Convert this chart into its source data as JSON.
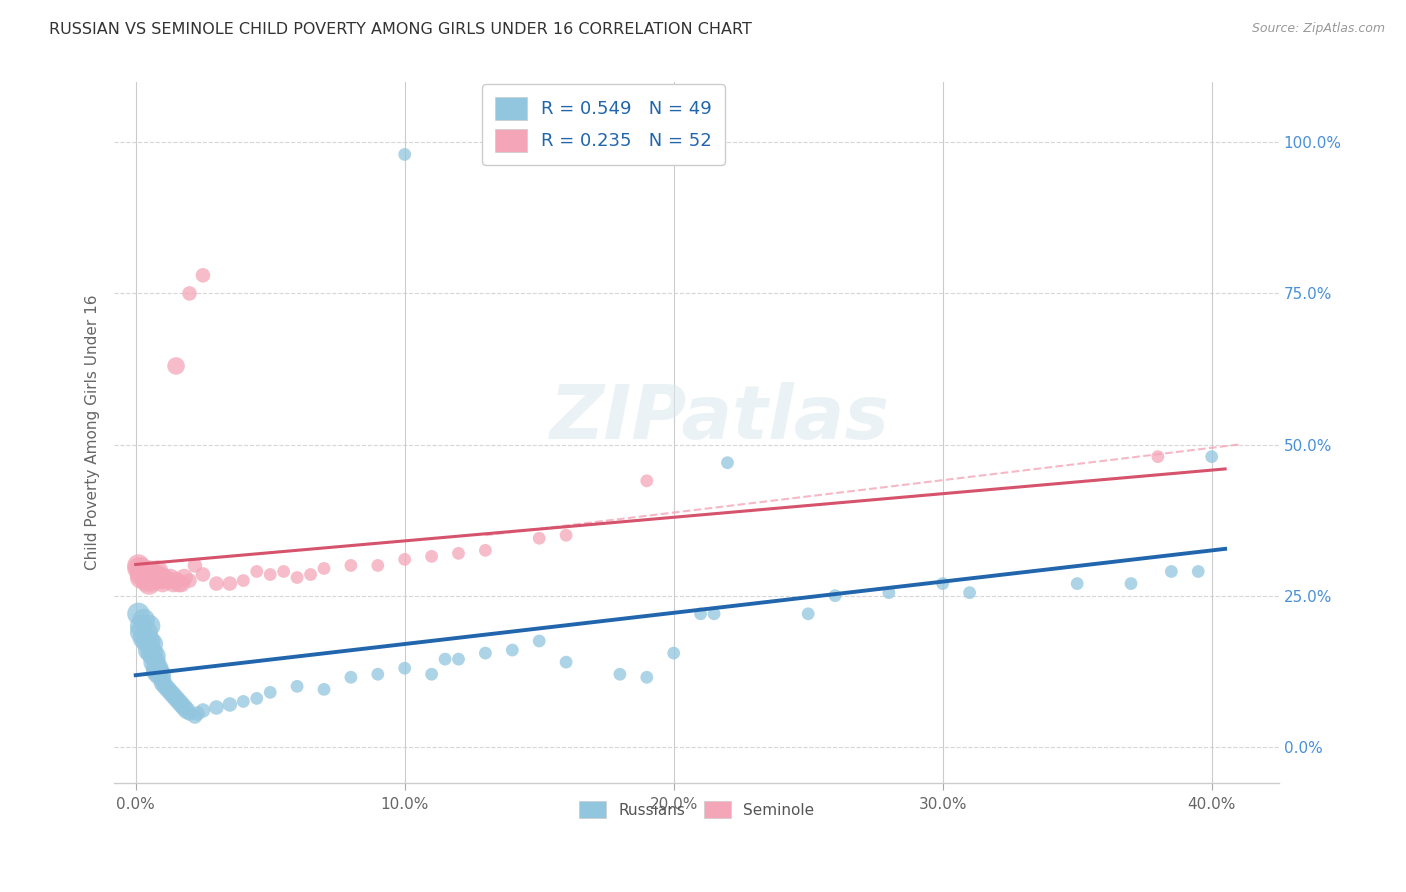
{
  "title": "RUSSIAN VS SEMINOLE CHILD POVERTY AMONG GIRLS UNDER 16 CORRELATION CHART",
  "source": "Source: ZipAtlas.com",
  "ylabel": "Child Poverty Among Girls Under 16",
  "xlabel_ticks": [
    "0.0%",
    "",
    "10.0%",
    "",
    "20.0%",
    "",
    "30.0%",
    "",
    "40.0%"
  ],
  "xlabel_vals": [
    0.0,
    0.05,
    0.1,
    0.15,
    0.2,
    0.25,
    0.3,
    0.35,
    0.4
  ],
  "xlabel_show": [
    "0.0%",
    "10.0%",
    "20.0%",
    "30.0%",
    "40.0%"
  ],
  "xlabel_show_vals": [
    0.0,
    0.1,
    0.2,
    0.3,
    0.4
  ],
  "ylabel_ticks": [
    "100.0%",
    "75.0%",
    "50.0%",
    "25.0%",
    "0.0%"
  ],
  "ylabel_vals": [
    1.0,
    0.75,
    0.5,
    0.25,
    0.0
  ],
  "xlim": [
    -0.008,
    0.425
  ],
  "ylim": [
    -0.06,
    1.1
  ],
  "legend_blue_R": "0.549",
  "legend_blue_N": "49",
  "legend_pink_R": "0.235",
  "legend_pink_N": "52",
  "legend_blue_bottom_label": "Russians",
  "legend_pink_bottom_label": "Seminole",
  "blue_color": "#92c5de",
  "pink_color": "#f4a6b8",
  "blue_line_color": "#2166ac",
  "pink_line_color": "#d6536d",
  "blue_scatter": [
    [
      0.001,
      0.22
    ],
    [
      0.002,
      0.2
    ],
    [
      0.002,
      0.19
    ],
    [
      0.003,
      0.21
    ],
    [
      0.003,
      0.18
    ],
    [
      0.004,
      0.19
    ],
    [
      0.004,
      0.175
    ],
    [
      0.005,
      0.2
    ],
    [
      0.005,
      0.175
    ],
    [
      0.005,
      0.16
    ],
    [
      0.006,
      0.17
    ],
    [
      0.006,
      0.155
    ],
    [
      0.007,
      0.15
    ],
    [
      0.007,
      0.14
    ],
    [
      0.008,
      0.13
    ],
    [
      0.008,
      0.125
    ],
    [
      0.009,
      0.12
    ],
    [
      0.01,
      0.11
    ],
    [
      0.01,
      0.105
    ],
    [
      0.011,
      0.1
    ],
    [
      0.012,
      0.095
    ],
    [
      0.013,
      0.09
    ],
    [
      0.014,
      0.085
    ],
    [
      0.015,
      0.08
    ],
    [
      0.016,
      0.075
    ],
    [
      0.017,
      0.07
    ],
    [
      0.018,
      0.065
    ],
    [
      0.019,
      0.06
    ],
    [
      0.02,
      0.055
    ],
    [
      0.022,
      0.05
    ],
    [
      0.023,
      0.055
    ],
    [
      0.025,
      0.06
    ],
    [
      0.03,
      0.065
    ],
    [
      0.035,
      0.07
    ],
    [
      0.04,
      0.075
    ],
    [
      0.045,
      0.08
    ],
    [
      0.05,
      0.09
    ],
    [
      0.06,
      0.1
    ],
    [
      0.07,
      0.095
    ],
    [
      0.08,
      0.115
    ],
    [
      0.09,
      0.12
    ],
    [
      0.1,
      0.13
    ],
    [
      0.11,
      0.12
    ],
    [
      0.115,
      0.145
    ],
    [
      0.12,
      0.145
    ],
    [
      0.13,
      0.155
    ],
    [
      0.14,
      0.16
    ],
    [
      0.15,
      0.175
    ],
    [
      0.16,
      0.14
    ],
    [
      0.18,
      0.12
    ],
    [
      0.2,
      0.155
    ],
    [
      0.21,
      0.22
    ],
    [
      0.215,
      0.22
    ],
    [
      0.22,
      0.47
    ],
    [
      0.25,
      0.22
    ],
    [
      0.26,
      0.25
    ],
    [
      0.28,
      0.255
    ],
    [
      0.3,
      0.27
    ],
    [
      0.31,
      0.255
    ],
    [
      0.35,
      0.27
    ],
    [
      0.37,
      0.27
    ],
    [
      0.385,
      0.29
    ],
    [
      0.395,
      0.29
    ],
    [
      0.4,
      0.48
    ],
    [
      0.19,
      0.115
    ],
    [
      0.1,
      0.98
    ]
  ],
  "pink_scatter": [
    [
      0.001,
      0.3
    ],
    [
      0.001,
      0.295
    ],
    [
      0.002,
      0.295
    ],
    [
      0.002,
      0.285
    ],
    [
      0.002,
      0.28
    ],
    [
      0.003,
      0.29
    ],
    [
      0.003,
      0.285
    ],
    [
      0.004,
      0.28
    ],
    [
      0.004,
      0.275
    ],
    [
      0.005,
      0.29
    ],
    [
      0.005,
      0.28
    ],
    [
      0.005,
      0.27
    ],
    [
      0.006,
      0.285
    ],
    [
      0.006,
      0.275
    ],
    [
      0.007,
      0.285
    ],
    [
      0.007,
      0.28
    ],
    [
      0.008,
      0.29
    ],
    [
      0.008,
      0.28
    ],
    [
      0.009,
      0.28
    ],
    [
      0.01,
      0.275
    ],
    [
      0.01,
      0.27
    ],
    [
      0.011,
      0.28
    ],
    [
      0.012,
      0.275
    ],
    [
      0.013,
      0.28
    ],
    [
      0.014,
      0.27
    ],
    [
      0.015,
      0.275
    ],
    [
      0.016,
      0.27
    ],
    [
      0.017,
      0.27
    ],
    [
      0.018,
      0.28
    ],
    [
      0.02,
      0.275
    ],
    [
      0.022,
      0.3
    ],
    [
      0.025,
      0.285
    ],
    [
      0.03,
      0.27
    ],
    [
      0.035,
      0.27
    ],
    [
      0.04,
      0.275
    ],
    [
      0.045,
      0.29
    ],
    [
      0.05,
      0.285
    ],
    [
      0.055,
      0.29
    ],
    [
      0.06,
      0.28
    ],
    [
      0.065,
      0.285
    ],
    [
      0.07,
      0.295
    ],
    [
      0.08,
      0.3
    ],
    [
      0.09,
      0.3
    ],
    [
      0.1,
      0.31
    ],
    [
      0.11,
      0.315
    ],
    [
      0.12,
      0.32
    ],
    [
      0.13,
      0.325
    ],
    [
      0.15,
      0.345
    ],
    [
      0.16,
      0.35
    ],
    [
      0.19,
      0.44
    ],
    [
      0.015,
      0.63
    ],
    [
      0.02,
      0.75
    ],
    [
      0.025,
      0.78
    ],
    [
      0.38,
      0.48
    ]
  ],
  "blue_R": 0.549,
  "blue_N": 49,
  "pink_R": 0.235,
  "pink_N": 52
}
